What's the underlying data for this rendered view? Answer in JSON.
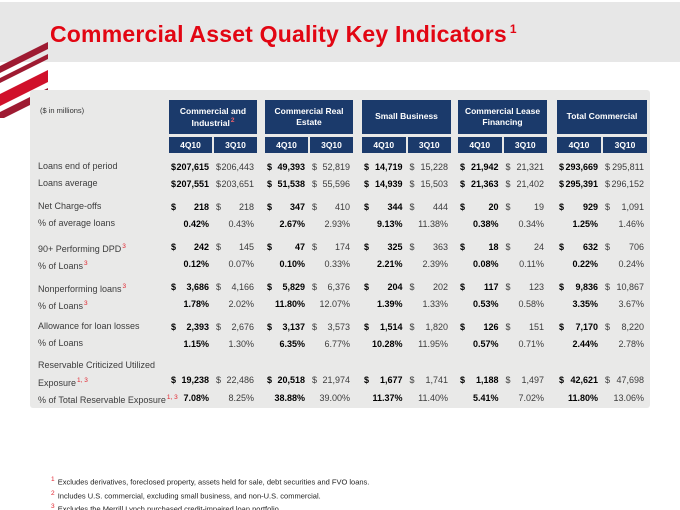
{
  "slide": {
    "title": "Commercial Asset Quality Key Indicators",
    "title_superscript": "1",
    "units_label": "($ in millions)"
  },
  "colors": {
    "title_red": "#E20613",
    "header_navy": "#1B3A6B",
    "panel_gray": "#E9E9E8",
    "superscript_red": "#E2242E",
    "logo_dark_red": "#9E1B32",
    "logo_bright_red": "#D0112B"
  },
  "icons": {
    "logo": "bank-flag-stripes-icon"
  },
  "table": {
    "groups": [
      {
        "label": "Commercial and Industrial",
        "superscript": "2",
        "subcolumns": [
          "4Q10",
          "3Q10"
        ]
      },
      {
        "label": "Commercial Real Estate",
        "superscript": "",
        "subcolumns": [
          "4Q10",
          "3Q10"
        ]
      },
      {
        "label": "Small Business",
        "superscript": "",
        "subcolumns": [
          "4Q10",
          "3Q10"
        ]
      },
      {
        "label": "Commercial Lease Financing",
        "superscript": "",
        "subcolumns": [
          "4Q10",
          "3Q10"
        ]
      },
      {
        "label": "Total Commercial",
        "superscript": "",
        "subcolumns": [
          "4Q10",
          "3Q10"
        ]
      }
    ],
    "rows": [
      {
        "label": "Loans end of period",
        "sup": "",
        "type": "dollar",
        "gap_before": false,
        "values": [
          "207,615",
          "206,443",
          "49,393",
          "52,819",
          "14,719",
          "15,228",
          "21,942",
          "21,321",
          "293,669",
          "295,811"
        ]
      },
      {
        "label": "Loans average",
        "sup": "",
        "type": "dollar",
        "gap_before": false,
        "values": [
          "207,551",
          "203,651",
          "51,538",
          "55,596",
          "14,939",
          "15,503",
          "21,363",
          "21,402",
          "295,391",
          "296,152"
        ]
      },
      {
        "label": "Net Charge-offs",
        "sup": "",
        "type": "dollar",
        "gap_before": true,
        "values": [
          "218",
          "218",
          "347",
          "410",
          "344",
          "444",
          "20",
          "19",
          "929",
          "1,091"
        ]
      },
      {
        "label": "% of average loans",
        "sup": "",
        "type": "percent",
        "gap_before": false,
        "values": [
          "0.42%",
          "0.43%",
          "2.67%",
          "2.93%",
          "9.13%",
          "11.38%",
          "0.38%",
          "0.34%",
          "1.25%",
          "1.46%"
        ]
      },
      {
        "label": "90+ Performing DPD",
        "sup": "3",
        "type": "dollar",
        "gap_before": true,
        "values": [
          "242",
          "145",
          "47",
          "174",
          "325",
          "363",
          "18",
          "24",
          "632",
          "706"
        ]
      },
      {
        "label": "% of Loans",
        "sup": "3",
        "type": "percent",
        "gap_before": false,
        "values": [
          "0.12%",
          "0.07%",
          "0.10%",
          "0.33%",
          "2.21%",
          "2.39%",
          "0.08%",
          "0.11%",
          "0.22%",
          "0.24%"
        ]
      },
      {
        "label": "Nonperforming loans",
        "sup": "3",
        "type": "dollar",
        "gap_before": true,
        "values": [
          "3,686",
          "4,166",
          "5,829",
          "6,376",
          "204",
          "202",
          "117",
          "123",
          "9,836",
          "10,867"
        ]
      },
      {
        "label": "% of Loans",
        "sup": "3",
        "type": "percent",
        "gap_before": false,
        "values": [
          "1.78%",
          "2.02%",
          "11.80%",
          "12.07%",
          "1.39%",
          "1.33%",
          "0.53%",
          "0.58%",
          "3.35%",
          "3.67%"
        ]
      },
      {
        "label": "Allowance for loan losses",
        "sup": "",
        "type": "dollar",
        "gap_before": true,
        "values": [
          "2,393",
          "2,676",
          "3,137",
          "3,573",
          "1,514",
          "1,820",
          "126",
          "151",
          "7,170",
          "8,220"
        ]
      },
      {
        "label": "% of Loans",
        "sup": "",
        "type": "percent",
        "gap_before": false,
        "values": [
          "1.15%",
          "1.30%",
          "6.35%",
          "6.77%",
          "10.28%",
          "11.95%",
          "0.57%",
          "0.71%",
          "2.44%",
          "2.78%"
        ]
      },
      {
        "label": "Reservable Criticized Utilized",
        "label_line2": "Exposure",
        "sup": "1, 3",
        "type": "dollar",
        "gap_before": true,
        "values": [
          "19,238",
          "22,486",
          "20,518",
          "21,974",
          "1,677",
          "1,741",
          "1,188",
          "1,497",
          "42,621",
          "47,698"
        ]
      },
      {
        "label": "% of Total Reservable Exposure",
        "sup": "1, 3",
        "type": "percent",
        "gap_before": false,
        "values": [
          "7.08%",
          "8.25%",
          "38.88%",
          "39.00%",
          "11.37%",
          "11.40%",
          "5.41%",
          "7.02%",
          "11.80%",
          "13.06%"
        ]
      }
    ]
  },
  "footnotes": [
    {
      "sup": "1",
      "text": "Excludes derivatives, foreclosed property, assets held for sale, debt securities and FVO loans."
    },
    {
      "sup": "2",
      "text": "Includes U.S. commercial, excluding small business, and non-U.S. commercial."
    },
    {
      "sup": "3",
      "text": "Excludes the Merrill Lynch purchased credit-impaired loan portfolio."
    }
  ]
}
